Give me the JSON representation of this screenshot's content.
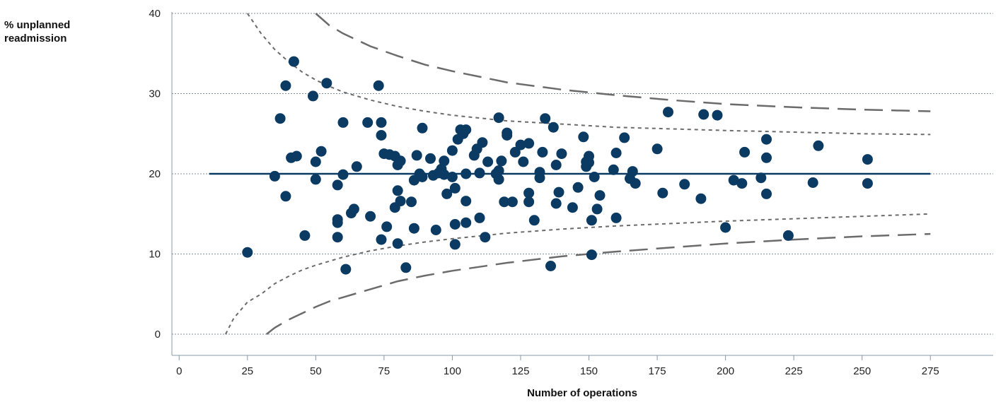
{
  "chart_data": {
    "type": "scatter",
    "title": "",
    "xlabel": "Number of operations",
    "ylabel": [
      "% unplanned",
      "readmission"
    ],
    "xlim": [
      0,
      295
    ],
    "ylim": [
      0,
      40
    ],
    "xticks": [
      0,
      25,
      50,
      75,
      100,
      125,
      150,
      175,
      200,
      225,
      250,
      275
    ],
    "yticks": [
      0,
      10,
      20,
      30,
      40
    ],
    "grid": "horizontal dotted",
    "colors": {
      "points": "#0b3a63",
      "mean_line": "#0b3a63",
      "limits": "#6b6b6b",
      "grid": "#7f8c99"
    },
    "mean": {
      "y": 20,
      "x_range": [
        11,
        275
      ]
    },
    "limits": {
      "inner_upper": {
        "x": [
          25,
          30,
          35,
          40,
          45,
          50,
          55,
          60,
          70,
          80,
          90,
          100,
          120,
          140,
          160,
          180,
          200,
          225,
          250,
          275
        ],
        "y": [
          40,
          37.5,
          35.5,
          34,
          32.7,
          31.7,
          30.9,
          30.2,
          29.2,
          28.4,
          27.8,
          27.3,
          26.6,
          26.2,
          25.8,
          25.6,
          25.4,
          25.2,
          25.0,
          24.9
        ]
      },
      "inner_lower": {
        "x": [
          17,
          20,
          25,
          30,
          35,
          40,
          45,
          50,
          55,
          60,
          70,
          80,
          90,
          100,
          120,
          140,
          160,
          180,
          200,
          225,
          250,
          275
        ],
        "y": [
          0,
          2,
          4,
          5,
          6.3,
          7.2,
          8,
          8.6,
          9.1,
          9.6,
          10.4,
          11,
          11.5,
          11.9,
          12.6,
          13.1,
          13.5,
          13.8,
          14.1,
          14.4,
          14.7,
          15
        ]
      },
      "outer_upper": {
        "x": [
          50,
          55,
          60,
          70,
          80,
          90,
          100,
          120,
          140,
          160,
          180,
          200,
          225,
          250,
          275
        ],
        "y": [
          40,
          38.5,
          37.5,
          35.9,
          34.7,
          33.6,
          32.8,
          31.4,
          30.5,
          29.8,
          29.2,
          28.7,
          28.3,
          28.0,
          27.8
        ]
      },
      "outer_lower": {
        "x": [
          32,
          35,
          40,
          45,
          50,
          55,
          60,
          70,
          80,
          90,
          100,
          120,
          140,
          160,
          180,
          200,
          225,
          250,
          275
        ],
        "y": [
          0,
          0.8,
          1.8,
          2.6,
          3.4,
          4.1,
          4.6,
          5.6,
          6.6,
          7.3,
          7.9,
          8.9,
          9.7,
          10.3,
          10.8,
          11.3,
          11.8,
          12.2,
          12.5
        ]
      }
    },
    "points": [
      [
        25,
        10.2
      ],
      [
        35,
        19.7
      ],
      [
        37,
        26.9
      ],
      [
        39,
        31
      ],
      [
        39,
        17.2
      ],
      [
        41,
        22
      ],
      [
        42,
        34
      ],
      [
        43,
        22.2
      ],
      [
        46,
        12.3
      ],
      [
        49,
        29.7
      ],
      [
        50,
        21.5
      ],
      [
        50,
        19.3
      ],
      [
        52,
        22.8
      ],
      [
        54,
        31.3
      ],
      [
        58,
        18.6
      ],
      [
        58,
        14.3
      ],
      [
        58,
        13.9
      ],
      [
        58,
        12.1
      ],
      [
        60,
        26.4
      ],
      [
        60,
        19.9
      ],
      [
        61,
        8.1
      ],
      [
        63,
        15.1
      ],
      [
        64,
        15.6
      ],
      [
        65,
        20.9
      ],
      [
        69,
        26.4
      ],
      [
        70,
        14.7
      ],
      [
        73,
        31
      ],
      [
        74,
        26.4
      ],
      [
        74,
        24.8
      ],
      [
        74,
        11.8
      ],
      [
        75,
        22.5
      ],
      [
        76,
        13.4
      ],
      [
        77,
        22.4
      ],
      [
        79,
        15.8
      ],
      [
        79,
        22.2
      ],
      [
        80,
        11.3
      ],
      [
        80,
        17.9
      ],
      [
        80,
        21.1
      ],
      [
        81,
        21.6
      ],
      [
        81,
        16.6
      ],
      [
        83,
        8.3
      ],
      [
        85,
        16.5
      ],
      [
        86,
        19.2
      ],
      [
        86,
        13.2
      ],
      [
        87,
        22.3
      ],
      [
        88,
        20
      ],
      [
        89,
        25.7
      ],
      [
        89,
        19.6
      ],
      [
        92,
        21.9
      ],
      [
        93,
        19.8
      ],
      [
        94,
        13
      ],
      [
        95,
        20.1
      ],
      [
        96,
        20.6
      ],
      [
        97,
        19.9
      ],
      [
        97,
        21.6
      ],
      [
        98,
        17.5
      ],
      [
        100,
        22.9
      ],
      [
        100,
        19.6
      ],
      [
        101,
        11.2
      ],
      [
        101,
        18.2
      ],
      [
        101,
        13.7
      ],
      [
        102,
        24.3
      ],
      [
        103,
        25.5
      ],
      [
        104,
        25
      ],
      [
        105,
        25.5
      ],
      [
        105,
        20
      ],
      [
        105,
        16.6
      ],
      [
        105,
        13.9
      ],
      [
        108,
        22.3
      ],
      [
        109,
        23.1
      ],
      [
        110,
        20.1
      ],
      [
        110,
        14.5
      ],
      [
        111,
        23.9
      ],
      [
        112,
        12.1
      ],
      [
        113,
        21.5
      ],
      [
        116,
        20
      ],
      [
        117,
        27
      ],
      [
        117,
        20.4
      ],
      [
        117,
        19.3
      ],
      [
        118,
        21.6
      ],
      [
        119,
        16.5
      ],
      [
        120,
        25.1
      ],
      [
        120,
        24.8
      ],
      [
        122,
        16.5
      ],
      [
        123,
        22.7
      ],
      [
        125,
        23.6
      ],
      [
        126,
        21.5
      ],
      [
        128,
        23.8
      ],
      [
        128,
        17.6
      ],
      [
        128,
        16.5
      ],
      [
        130,
        14.2
      ],
      [
        132,
        19.5
      ],
      [
        132,
        20.2
      ],
      [
        133,
        22.7
      ],
      [
        134,
        26.9
      ],
      [
        136,
        8.5
      ],
      [
        137,
        25.8
      ],
      [
        138,
        21.1
      ],
      [
        138,
        16.3
      ],
      [
        139,
        17.7
      ],
      [
        140,
        22.5
      ],
      [
        144,
        15.8
      ],
      [
        146,
        18.3
      ],
      [
        148,
        24.6
      ],
      [
        149,
        20.9
      ],
      [
        149,
        21.5
      ],
      [
        150,
        22.2
      ],
      [
        150,
        21.4
      ],
      [
        151,
        14.2
      ],
      [
        151,
        9.9
      ],
      [
        152,
        19.6
      ],
      [
        153,
        15.6
      ],
      [
        154,
        17.3
      ],
      [
        159,
        20.5
      ],
      [
        160,
        22.6
      ],
      [
        160,
        14.5
      ],
      [
        163,
        24.5
      ],
      [
        165,
        19.4
      ],
      [
        166,
        20.3
      ],
      [
        167,
        18.8
      ],
      [
        175,
        23.1
      ],
      [
        177,
        17.6
      ],
      [
        179,
        27.7
      ],
      [
        185,
        18.7
      ],
      [
        191,
        16.9
      ],
      [
        192,
        27.4
      ],
      [
        197,
        27.3
      ],
      [
        200,
        13.3
      ],
      [
        203,
        19.2
      ],
      [
        206,
        18.8
      ],
      [
        207,
        22.7
      ],
      [
        213,
        19.5
      ],
      [
        215,
        22
      ],
      [
        215,
        24.3
      ],
      [
        215,
        17.5
      ],
      [
        223,
        12.3
      ],
      [
        232,
        18.9
      ],
      [
        234,
        23.5
      ],
      [
        252,
        21.8
      ],
      [
        252,
        18.8
      ]
    ]
  }
}
